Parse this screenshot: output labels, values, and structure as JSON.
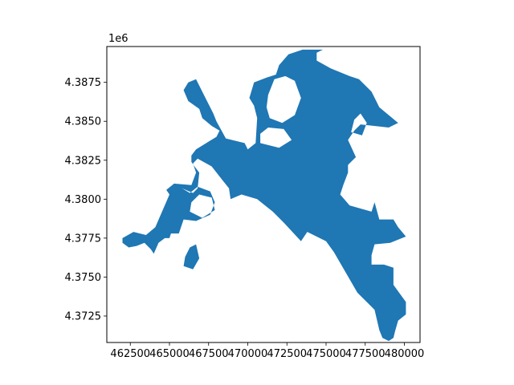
{
  "figure": {
    "background": "#ffffff"
  },
  "chart_data": {
    "type": "area",
    "title": "",
    "xlabel": "",
    "ylabel": "",
    "offset_label": "1e6",
    "xlim": [
      461000,
      481000
    ],
    "ylim": [
      4370800,
      4389800
    ],
    "xticks": [
      462500,
      465000,
      467500,
      470000,
      472500,
      475000,
      477500,
      480000
    ],
    "xtick_labels": [
      "462500",
      "465000",
      "467500",
      "470000",
      "472500",
      "475000",
      "477500",
      "480000"
    ],
    "yticks": [
      4372500,
      4375000,
      4377500,
      4380000,
      4382500,
      4385000,
      4387500
    ],
    "ytick_labels": [
      "4.3725",
      "4.3750",
      "4.3775",
      "4.3800",
      "4.3825",
      "4.3850",
      "4.3875"
    ],
    "fill_color": "#1f77b4",
    "grid": false,
    "series": [
      {
        "polygon": [
          [
            462000,
            4377200
          ],
          [
            462400,
            4376900
          ],
          [
            462900,
            4377000
          ],
          [
            463400,
            4377200
          ],
          [
            463800,
            4376800
          ],
          [
            464000,
            4376500
          ],
          [
            464300,
            4377200
          ],
          [
            464700,
            4377500
          ],
          [
            465000,
            4377500
          ],
          [
            465100,
            4377800
          ],
          [
            465600,
            4377800
          ],
          [
            465900,
            4378700
          ],
          [
            466700,
            4378600
          ],
          [
            467600,
            4379000
          ],
          [
            467900,
            4379800
          ],
          [
            467600,
            4380500
          ],
          [
            466800,
            4380800
          ],
          [
            466300,
            4380400
          ],
          [
            465800,
            4380700
          ],
          [
            466500,
            4380400
          ],
          [
            466800,
            4380700
          ],
          [
            466900,
            4381700
          ],
          [
            466600,
            4382100
          ],
          [
            466400,
            4382400
          ],
          [
            466400,
            4382800
          ],
          [
            466700,
            4383200
          ],
          [
            467500,
            4383700
          ],
          [
            468000,
            4384000
          ],
          [
            468200,
            4384400
          ],
          [
            467700,
            4384700
          ],
          [
            467100,
            4385200
          ],
          [
            466900,
            4385800
          ],
          [
            466200,
            4386300
          ],
          [
            465900,
            4387000
          ],
          [
            466200,
            4387500
          ],
          [
            466700,
            4387700
          ],
          [
            467300,
            4386500
          ],
          [
            467800,
            4385500
          ],
          [
            468000,
            4385000
          ],
          [
            468600,
            4383900
          ],
          [
            469800,
            4383600
          ],
          [
            470000,
            4383200
          ],
          [
            470500,
            4383600
          ],
          [
            470600,
            4385200
          ],
          [
            470400,
            4386000
          ],
          [
            470100,
            4386500
          ],
          [
            470400,
            4387500
          ],
          [
            471200,
            4387800
          ],
          [
            471800,
            4388000
          ],
          [
            472000,
            4388600
          ],
          [
            472600,
            4389300
          ],
          [
            473500,
            4389600
          ],
          [
            474800,
            4389600
          ],
          [
            474400,
            4389400
          ],
          [
            474400,
            4388900
          ],
          [
            475300,
            4388400
          ],
          [
            476500,
            4387900
          ],
          [
            477100,
            4387700
          ],
          [
            477900,
            4386900
          ],
          [
            478400,
            4385900
          ],
          [
            479600,
            4384900
          ],
          [
            479000,
            4384600
          ],
          [
            477200,
            4384800
          ],
          [
            476800,
            4384400
          ],
          [
            476400,
            4383800
          ],
          [
            476900,
            4382700
          ],
          [
            476400,
            4382200
          ],
          [
            476400,
            4381700
          ],
          [
            476100,
            4380900
          ],
          [
            475900,
            4380300
          ],
          [
            476500,
            4379600
          ],
          [
            477900,
            4379200
          ],
          [
            478100,
            4379800
          ],
          [
            478400,
            4378700
          ],
          [
            479300,
            4378700
          ],
          [
            479600,
            4378200
          ],
          [
            480100,
            4377600
          ],
          [
            479100,
            4377200
          ],
          [
            478100,
            4377100
          ],
          [
            477900,
            4376400
          ],
          [
            477900,
            4375800
          ],
          [
            478700,
            4375800
          ],
          [
            479300,
            4375600
          ],
          [
            479300,
            4374500
          ],
          [
            480100,
            4373400
          ],
          [
            480100,
            4372600
          ],
          [
            479600,
            4372200
          ],
          [
            479400,
            4371500
          ],
          [
            479300,
            4371100
          ],
          [
            479000,
            4370900
          ],
          [
            478600,
            4371100
          ],
          [
            478400,
            4371600
          ],
          [
            478100,
            4372900
          ],
          [
            477000,
            4374000
          ],
          [
            475500,
            4376600
          ],
          [
            475000,
            4377300
          ],
          [
            473800,
            4377900
          ],
          [
            473400,
            4377300
          ],
          [
            472300,
            4378500
          ],
          [
            471600,
            4379200
          ],
          [
            470600,
            4380000
          ],
          [
            469600,
            4380300
          ],
          [
            468900,
            4380000
          ],
          [
            468800,
            4380700
          ],
          [
            468400,
            4381200
          ],
          [
            467700,
            4382100
          ],
          [
            466800,
            4382600
          ],
          [
            466500,
            4382300
          ],
          [
            466700,
            4381700
          ],
          [
            466400,
            4380900
          ],
          [
            465300,
            4381000
          ],
          [
            464800,
            4380600
          ],
          [
            465000,
            4380300
          ],
          [
            464100,
            4378200
          ],
          [
            463500,
            4377700
          ],
          [
            462700,
            4377900
          ],
          [
            462000,
            4377500
          ]
        ],
        "holes": [
          [
            [
              470800,
              4383600
            ],
            [
              472000,
              4383300
            ],
            [
              472800,
              4383800
            ],
            [
              472300,
              4384500
            ],
            [
              471300,
              4384600
            ],
            [
              470800,
              4384200
            ]
          ],
          [
            [
              471400,
              4385200
            ],
            [
              472200,
              4384900
            ],
            [
              473000,
              4385400
            ],
            [
              473400,
              4386500
            ],
            [
              473000,
              4387600
            ],
            [
              472400,
              4387900
            ],
            [
              471700,
              4387700
            ],
            [
              471300,
              4386700
            ],
            [
              471200,
              4385900
            ]
          ],
          [
            [
              476600,
              4384300
            ],
            [
              477300,
              4384100
            ],
            [
              477600,
              4384900
            ],
            [
              477200,
              4385500
            ],
            [
              476800,
              4385100
            ]
          ],
          [
            [
              466300,
              4379200
            ],
            [
              467100,
              4378800
            ],
            [
              467900,
              4379300
            ],
            [
              467700,
              4380100
            ],
            [
              466900,
              4380300
            ],
            [
              466400,
              4379800
            ]
          ],
          [
            [
              465900,
              4375700
            ],
            [
              466500,
              4375500
            ],
            [
              466900,
              4376200
            ],
            [
              466700,
              4377100
            ],
            [
              466300,
              4376900
            ],
            [
              466000,
              4376300
            ]
          ]
        ]
      }
    ]
  }
}
